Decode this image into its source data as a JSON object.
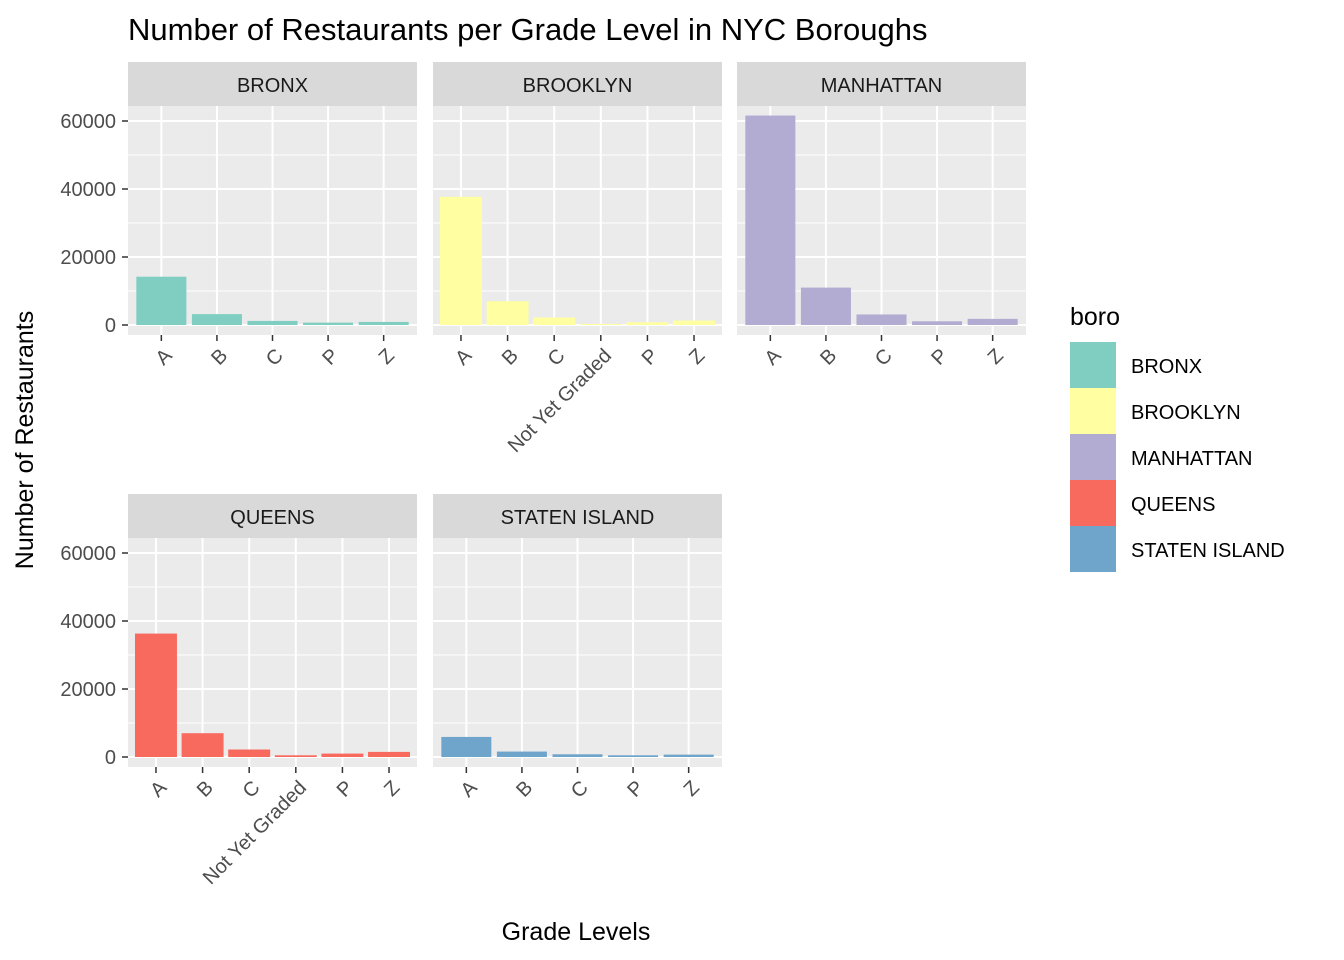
{
  "chart_data": {
    "type": "bar",
    "title": "Number of Restaurants per Grade Level in NYC Boroughs",
    "xlabel": "Grade Levels",
    "ylabel": "Number of Restaurants",
    "ylim": [
      0,
      66000
    ],
    "y_ticks": [
      0,
      20000,
      40000,
      60000
    ],
    "grid": true,
    "legend": {
      "title": "boro",
      "position": "right",
      "entries": [
        "BRONX",
        "BROOKLYN",
        "MANHATTAN",
        "QUEENS",
        "STATEN ISLAND"
      ]
    },
    "colors": {
      "BRONX": "#80CDC1",
      "BROOKLYN": "#FFFFA2",
      "MANHATTAN": "#B2ABD2",
      "QUEENS": "#F8695E",
      "STATEN ISLAND": "#6FA4CB"
    },
    "panels": [
      {
        "name": "BRONX",
        "categories": [
          "A",
          "B",
          "C",
          "P",
          "Z"
        ],
        "values": [
          14200,
          3200,
          1200,
          700,
          900
        ]
      },
      {
        "name": "BROOKLYN",
        "categories": [
          "A",
          "B",
          "C",
          "Not Yet Graded",
          "P",
          "Z"
        ],
        "values": [
          37700,
          7000,
          2200,
          300,
          800,
          1300
        ]
      },
      {
        "name": "MANHATTAN",
        "categories": [
          "A",
          "B",
          "C",
          "P",
          "Z"
        ],
        "values": [
          61600,
          11000,
          3100,
          1100,
          1800
        ]
      },
      {
        "name": "QUEENS",
        "categories": [
          "A",
          "B",
          "C",
          "Not Yet Graded",
          "P",
          "Z"
        ],
        "values": [
          36300,
          7000,
          2200,
          500,
          1000,
          1500
        ]
      },
      {
        "name": "STATEN ISLAND",
        "categories": [
          "A",
          "B",
          "C",
          "P",
          "Z"
        ],
        "values": [
          5900,
          1600,
          800,
          500,
          700
        ]
      }
    ]
  }
}
